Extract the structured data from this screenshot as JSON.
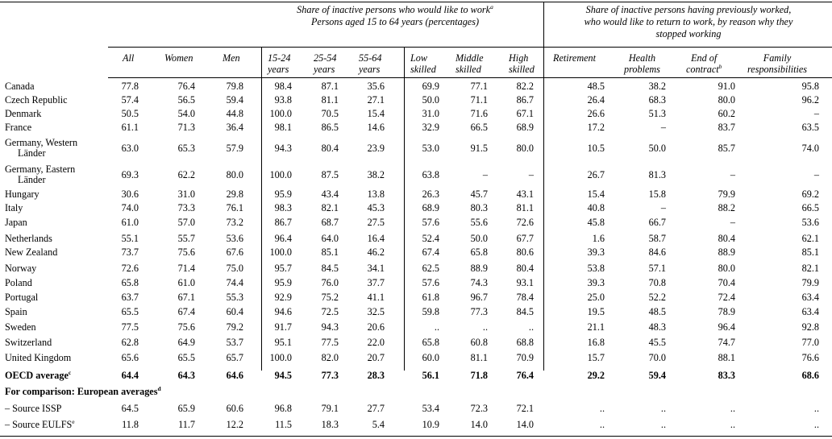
{
  "header": {
    "group1_line1": "Share of inactive persons who would like to work",
    "group1_sup": "a",
    "group1_line2": "Persons aged 15 to 64 years (percentages)",
    "group2_line1": "Share of inactive persons having previously worked,",
    "group2_line2": "who would like to return to work, by reason why they",
    "group2_line3": "stopped working"
  },
  "columns": {
    "all": "All",
    "women": "Women",
    "men": "Men",
    "age1524_a": "15-24",
    "age1524_b": "years",
    "age2554_a": "25-54",
    "age2554_b": "years",
    "age5564_a": "55-64",
    "age5564_b": "years",
    "low_a": "Low",
    "low_b": "skilled",
    "mid_a": "Middle",
    "mid_b": "skilled",
    "high_a": "High",
    "high_b": "skilled",
    "retire": "Retirement",
    "health_a": "Health",
    "health_b": "problems",
    "endc_a": "End of",
    "endc_b": "contract",
    "endc_sup": "b",
    "fam_a": "Family",
    "fam_b": "responsibilities"
  },
  "rows": [
    {
      "label": "Canada",
      "v": [
        "77.8",
        "76.4",
        "79.8",
        "98.4",
        "87.1",
        "35.6",
        "69.9",
        "77.1",
        "82.2",
        "48.5",
        "38.2",
        "91.0",
        "95.8"
      ]
    },
    {
      "label": "Czech Republic",
      "v": [
        "57.4",
        "56.5",
        "59.4",
        "93.8",
        "81.1",
        "27.1",
        "50.0",
        "71.1",
        "86.7",
        "26.4",
        "68.3",
        "80.0",
        "96.2"
      ]
    },
    {
      "label": "Denmark",
      "v": [
        "50.5",
        "54.0",
        "44.8",
        "100.0",
        "70.5",
        "15.4",
        "31.0",
        "71.6",
        "67.1",
        "26.6",
        "51.3",
        "60.2",
        "–"
      ]
    },
    {
      "label": "France",
      "v": [
        "61.1",
        "71.3",
        "36.4",
        "98.1",
        "86.5",
        "14.6",
        "32.9",
        "66.5",
        "68.9",
        "17.2",
        "–",
        "83.7",
        "63.5"
      ]
    },
    {
      "label": "Germany, Western",
      "label2": "Länder",
      "v": [
        "63.0",
        "65.3",
        "57.9",
        "94.3",
        "80.4",
        "23.9",
        "53.0",
        "91.5",
        "80.0",
        "10.5",
        "50.0",
        "85.7",
        "74.0"
      ]
    },
    {
      "label": "Germany, Eastern",
      "label2": "Länder",
      "v": [
        "69.3",
        "62.2",
        "80.0",
        "100.0",
        "87.5",
        "38.2",
        "63.8",
        "–",
        "–",
        "26.7",
        "81.3",
        "–",
        "–"
      ]
    },
    {
      "label": "Hungary",
      "v": [
        "30.6",
        "31.0",
        "29.8",
        "95.9",
        "43.4",
        "13.8",
        "26.3",
        "45.7",
        "43.1",
        "15.4",
        "15.8",
        "79.9",
        "69.2"
      ]
    },
    {
      "label": "Italy",
      "v": [
        "74.0",
        "73.3",
        "76.1",
        "98.3",
        "82.1",
        "45.3",
        "68.9",
        "80.3",
        "81.1",
        "40.8",
        "–",
        "88.2",
        "66.5"
      ]
    },
    {
      "label": "Japan",
      "v": [
        "61.0",
        "57.0",
        "73.2",
        "86.7",
        "68.7",
        "27.5",
        "57.6",
        "55.6",
        "72.6",
        "45.8",
        "66.7",
        "–",
        "53.6"
      ]
    },
    {
      "label": "Netherlands",
      "v": [
        "55.1",
        "55.7",
        "53.6",
        "96.4",
        "64.0",
        "16.4",
        "52.4",
        "50.0",
        "67.7",
        "1.6",
        "58.7",
        "80.4",
        "62.1"
      ]
    },
    {
      "label": "New Zealand",
      "v": [
        "73.7",
        "75.6",
        "67.6",
        "100.0",
        "85.1",
        "46.2",
        "67.4",
        "65.8",
        "80.6",
        "39.3",
        "84.6",
        "88.9",
        "85.1"
      ]
    },
    {
      "label": "Norway",
      "v": [
        "72.6",
        "71.4",
        "75.0",
        "95.7",
        "84.5",
        "34.1",
        "62.5",
        "88.9",
        "80.4",
        "53.8",
        "57.1",
        "80.0",
        "82.1"
      ]
    },
    {
      "label": "Poland",
      "v": [
        "65.8",
        "61.0",
        "74.4",
        "95.9",
        "76.0",
        "37.7",
        "57.6",
        "74.3",
        "93.1",
        "39.3",
        "70.8",
        "70.4",
        "79.9"
      ]
    },
    {
      "label": "Portugal",
      "v": [
        "63.7",
        "67.1",
        "55.3",
        "92.9",
        "75.2",
        "41.1",
        "61.8",
        "96.7",
        "78.4",
        "25.0",
        "52.2",
        "72.4",
        "63.4"
      ]
    },
    {
      "label": "Spain",
      "v": [
        "65.5",
        "67.4",
        "60.4",
        "94.6",
        "72.5",
        "32.5",
        "59.8",
        "77.3",
        "84.5",
        "19.5",
        "48.5",
        "78.9",
        "63.4"
      ]
    },
    {
      "label": "Sweden",
      "v": [
        "77.5",
        "75.6",
        "79.2",
        "91.7",
        "94.3",
        "20.6",
        "..",
        "..",
        "..",
        "21.1",
        "48.3",
        "96.4",
        "92.8"
      ]
    },
    {
      "label": "Switzerland",
      "v": [
        "62.8",
        "64.9",
        "53.7",
        "95.1",
        "77.5",
        "22.0",
        "65.8",
        "60.8",
        "68.8",
        "16.8",
        "45.5",
        "74.7",
        "77.0"
      ]
    },
    {
      "label": "United Kingdom",
      "v": [
        "65.6",
        "65.5",
        "65.7",
        "100.0",
        "82.0",
        "20.7",
        "60.0",
        "81.1",
        "70.9",
        "15.7",
        "70.0",
        "88.1",
        "76.6"
      ]
    }
  ],
  "oecd": {
    "label": "OECD average",
    "sup": "c",
    "v": [
      "64.4",
      "64.3",
      "64.6",
      "94.5",
      "77.3",
      "28.3",
      "56.1",
      "71.8",
      "76.4",
      "29.2",
      "59.4",
      "83.3",
      "68.6"
    ]
  },
  "comparison": {
    "label": "For comparison:  European averages",
    "sup": "d"
  },
  "issp": {
    "label": "– Source ISSP",
    "v": [
      "64.5",
      "65.9",
      "60.6",
      "96.8",
      "79.1",
      "27.7",
      "53.4",
      "72.3",
      "72.1",
      "..",
      "..",
      "..",
      ".."
    ]
  },
  "eulfs": {
    "label": "– Source EULFS",
    "sup": "e",
    "v": [
      "11.8",
      "11.7",
      "12.2",
      "11.5",
      "18.3",
      "5.4",
      "10.9",
      "14.0",
      "14.0",
      "..",
      "..",
      "..",
      ".."
    ]
  }
}
